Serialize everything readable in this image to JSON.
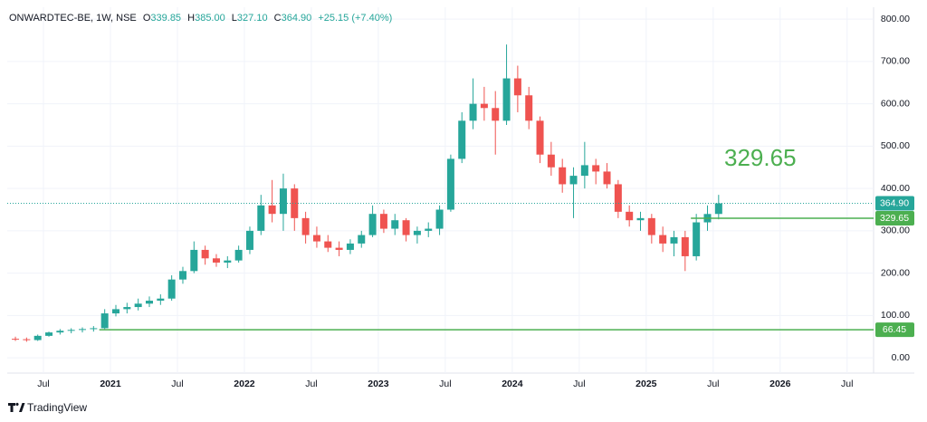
{
  "chart_data": {
    "type": "candlestick",
    "symbol_label": "ONWARDTEC-BE, 1W, NSE",
    "header_keys": [
      "O",
      "H",
      "L",
      "C"
    ],
    "last_labels": {
      "open": "339.85",
      "high": "385.00",
      "low": "327.10",
      "close": "364.90",
      "change": "+25.15 (+7.40%)"
    },
    "x": [
      "2020-04",
      "2020-05",
      "2020-06",
      "2020-07",
      "2020-08",
      "2020-09",
      "2020-10",
      "2020-11",
      "2020-12",
      "2021-01",
      "2021-02",
      "2021-03",
      "2021-04",
      "2021-05",
      "2021-06",
      "2021-07",
      "2021-08",
      "2021-09",
      "2021-10",
      "2021-11",
      "2021-12",
      "2022-01",
      "2022-02",
      "2022-03",
      "2022-04",
      "2022-05",
      "2022-06",
      "2022-07",
      "2022-08",
      "2022-09",
      "2022-10",
      "2022-11",
      "2022-12",
      "2023-01",
      "2023-02",
      "2023-03",
      "2023-04",
      "2023-05",
      "2023-06",
      "2023-07",
      "2023-08",
      "2023-09",
      "2023-10",
      "2023-11",
      "2023-12",
      "2024-01",
      "2024-02",
      "2024-03",
      "2024-04",
      "2024-05",
      "2024-06",
      "2024-07",
      "2024-08",
      "2024-09",
      "2024-10",
      "2024-11",
      "2024-12",
      "2025-01",
      "2025-02",
      "2025-03",
      "2025-04",
      "2025-05",
      "2025-06",
      "2025-07"
    ],
    "open": [
      45,
      44,
      42,
      52,
      60,
      64,
      66,
      68,
      70,
      105,
      115,
      120,
      128,
      135,
      140,
      185,
      205,
      255,
      235,
      225,
      230,
      255,
      300,
      360,
      340,
      400,
      330,
      290,
      275,
      260,
      255,
      270,
      290,
      340,
      305,
      325,
      290,
      300,
      305,
      350,
      470,
      560,
      600,
      590,
      560,
      660,
      620,
      560,
      480,
      450,
      410,
      430,
      455,
      440,
      410,
      345,
      325,
      330,
      290,
      270,
      285,
      240,
      320,
      339.85
    ],
    "high": [
      50,
      48,
      55,
      62,
      68,
      70,
      72,
      75,
      115,
      125,
      130,
      140,
      145,
      150,
      195,
      215,
      275,
      265,
      245,
      240,
      265,
      310,
      385,
      420,
      435,
      410,
      345,
      310,
      290,
      275,
      280,
      300,
      360,
      350,
      340,
      330,
      310,
      320,
      360,
      480,
      580,
      660,
      640,
      630,
      740,
      690,
      640,
      570,
      510,
      470,
      450,
      510,
      470,
      460,
      420,
      360,
      345,
      340,
      310,
      300,
      300,
      340,
      360,
      385
    ],
    "low": [
      40,
      38,
      40,
      50,
      55,
      58,
      60,
      62,
      68,
      98,
      105,
      112,
      120,
      125,
      135,
      175,
      200,
      220,
      215,
      212,
      225,
      245,
      290,
      320,
      300,
      300,
      270,
      260,
      250,
      240,
      245,
      260,
      285,
      295,
      290,
      275,
      270,
      285,
      290,
      345,
      460,
      540,
      560,
      480,
      550,
      580,
      540,
      460,
      430,
      390,
      330,
      400,
      410,
      400,
      330,
      310,
      300,
      270,
      250,
      240,
      205,
      230,
      300,
      327.1
    ],
    "close": [
      44,
      42,
      52,
      60,
      64,
      66,
      68,
      70,
      105,
      115,
      120,
      128,
      135,
      140,
      185,
      205,
      255,
      235,
      225,
      230,
      255,
      300,
      360,
      340,
      400,
      330,
      290,
      275,
      260,
      255,
      270,
      290,
      340,
      305,
      325,
      290,
      300,
      305,
      350,
      470,
      560,
      600,
      590,
      560,
      660,
      620,
      560,
      480,
      450,
      410,
      430,
      455,
      440,
      410,
      345,
      325,
      330,
      290,
      270,
      285,
      240,
      320,
      339.75,
      364.9
    ],
    "up_color": "#26a69a",
    "down_color": "#ef5350",
    "ylim": [
      -36,
      828
    ],
    "yticks": [
      {
        "value": 0,
        "label": "0.00"
      },
      {
        "value": 100,
        "label": "100.00"
      },
      {
        "value": 200,
        "label": "200.00"
      },
      {
        "value": 300,
        "label": "300.00"
      },
      {
        "value": 400,
        "label": "400.00"
      },
      {
        "value": 500,
        "label": "500.00"
      },
      {
        "value": 600,
        "label": "600.00"
      },
      {
        "value": 700,
        "label": "700.00"
      },
      {
        "value": 800,
        "label": "800.00"
      }
    ],
    "xticks": [
      {
        "value": "2020-07",
        "label": "Jul"
      },
      {
        "value": "2021-01",
        "label": "2021"
      },
      {
        "value": "2021-07",
        "label": "Jul"
      },
      {
        "value": "2022-01",
        "label": "2022"
      },
      {
        "value": "2022-07",
        "label": "Jul"
      },
      {
        "value": "2023-01",
        "label": "2023"
      },
      {
        "value": "2023-07",
        "label": "Jul"
      },
      {
        "value": "2024-01",
        "label": "2024"
      },
      {
        "value": "2024-07",
        "label": "Jul"
      },
      {
        "value": "2025-01",
        "label": "2025"
      },
      {
        "value": "2025-07",
        "label": "Jul"
      },
      {
        "value": "2026-01",
        "label": "2026"
      },
      {
        "value": "2026-07",
        "label": "Jul"
      }
    ],
    "levels": [
      {
        "value": 329.65,
        "start": "2025-05",
        "color": "#4caf50"
      },
      {
        "value": 66.45,
        "start": "2020-12",
        "color": "#4caf50"
      }
    ]
  },
  "branding": "TradingView"
}
